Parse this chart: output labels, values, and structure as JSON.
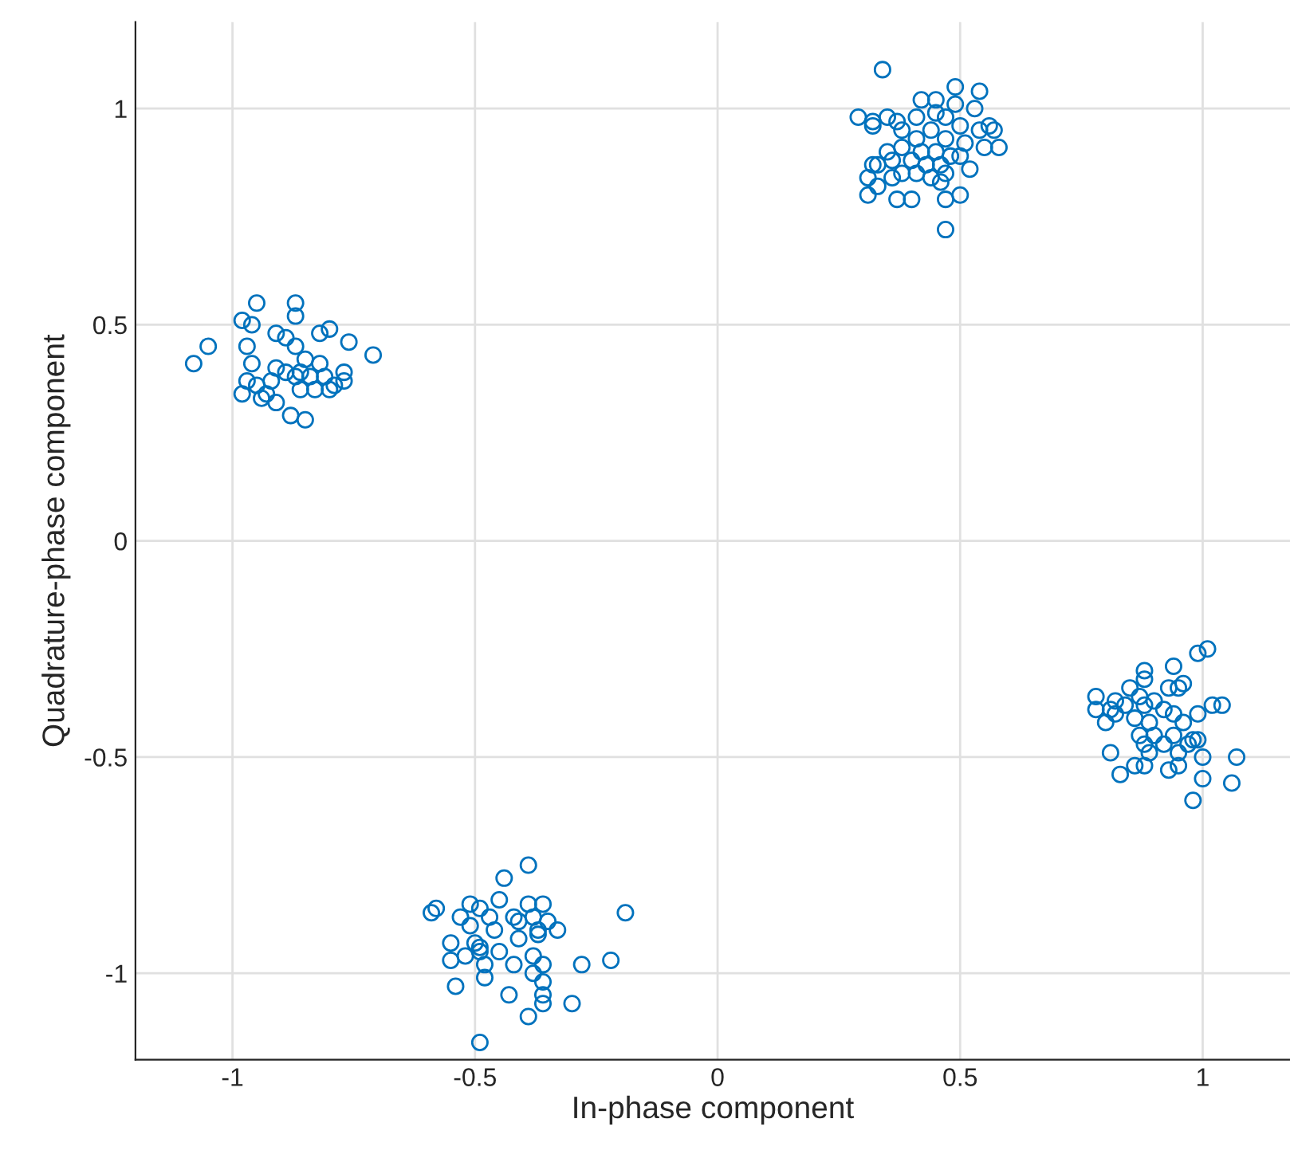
{
  "chart_data": {
    "type": "scatter",
    "xlabel": "In-phase component",
    "ylabel": "Quadrature-phase component",
    "xlim": [
      -1.2,
      1.18
    ],
    "ylim": [
      -1.2,
      1.2
    ],
    "xticks": [
      -1,
      -0.5,
      0,
      0.5,
      1
    ],
    "yticks": [
      -1,
      -0.5,
      0,
      0.5,
      1
    ],
    "grid": true,
    "marker": "circle",
    "series": [
      {
        "color": "#0072bd",
        "x": [
          -1.08,
          -1.05,
          -0.95,
          -0.87,
          -0.71,
          -0.76,
          -0.8,
          -0.82,
          -0.98,
          -0.96,
          -0.87,
          -0.91,
          -0.89,
          -0.87,
          -0.97,
          -0.96,
          -0.97,
          -0.95,
          -0.98,
          -0.94,
          -0.91,
          -0.88,
          -0.85,
          -0.91,
          -0.89,
          -0.87,
          -0.86,
          -0.84,
          -0.82,
          -0.81,
          -0.79,
          -0.77,
          -0.77,
          -0.83,
          -0.86,
          -0.92,
          -0.85,
          -0.8,
          -0.93,
          0.34,
          0.49,
          0.54,
          0.42,
          0.45,
          0.49,
          0.53,
          0.29,
          0.32,
          0.35,
          0.41,
          0.45,
          0.47,
          0.32,
          0.37,
          0.5,
          0.54,
          0.56,
          0.38,
          0.41,
          0.44,
          0.47,
          0.51,
          0.55,
          0.35,
          0.38,
          0.42,
          0.45,
          0.48,
          0.36,
          0.4,
          0.43,
          0.46,
          0.5,
          0.32,
          0.33,
          0.38,
          0.41,
          0.44,
          0.47,
          0.52,
          0.31,
          0.33,
          0.36,
          0.46,
          0.31,
          0.37,
          0.4,
          0.47,
          0.5,
          0.47,
          0.58,
          0.57,
          -0.39,
          -0.44,
          -0.59,
          -0.58,
          -0.51,
          -0.45,
          -0.39,
          -0.36,
          -0.53,
          -0.49,
          -0.47,
          -0.42,
          -0.38,
          -0.35,
          -0.19,
          -0.51,
          -0.46,
          -0.41,
          -0.37,
          -0.33,
          -0.55,
          -0.5,
          -0.49,
          -0.41,
          -0.37,
          -0.55,
          -0.52,
          -0.49,
          -0.45,
          -0.38,
          -0.36,
          -0.42,
          -0.48,
          -0.22,
          -0.28,
          -0.48,
          -0.38,
          -0.36,
          -0.54,
          -0.43,
          -0.36,
          -0.36,
          -0.3,
          -0.39,
          -0.49,
          1.01,
          0.99,
          0.88,
          0.94,
          0.88,
          0.96,
          0.78,
          0.82,
          0.85,
          0.87,
          0.9,
          0.93,
          0.95,
          0.78,
          0.81,
          0.84,
          0.88,
          0.92,
          1.02,
          1.04,
          0.99,
          0.82,
          0.8,
          0.86,
          0.89,
          0.94,
          0.96,
          0.87,
          0.9,
          0.94,
          0.98,
          0.88,
          0.92,
          0.97,
          0.99,
          0.89,
          0.95,
          0.81,
          1.0,
          1.07,
          0.86,
          0.88,
          0.93,
          0.95,
          0.83,
          1.0,
          1.06,
          0.98
        ],
        "values": [
          0.41,
          0.45,
          0.55,
          0.55,
          0.43,
          0.46,
          0.49,
          0.48,
          0.51,
          0.5,
          0.52,
          0.48,
          0.47,
          0.45,
          0.45,
          0.41,
          0.37,
          0.36,
          0.34,
          0.33,
          0.32,
          0.29,
          0.28,
          0.4,
          0.39,
          0.38,
          0.39,
          0.38,
          0.41,
          0.38,
          0.36,
          0.39,
          0.37,
          0.35,
          0.35,
          0.37,
          0.42,
          0.35,
          0.34,
          1.09,
          1.05,
          1.04,
          1.02,
          1.02,
          1.01,
          1.0,
          0.98,
          0.97,
          0.98,
          0.98,
          0.99,
          0.98,
          0.96,
          0.97,
          0.96,
          0.95,
          0.96,
          0.95,
          0.93,
          0.95,
          0.93,
          0.92,
          0.91,
          0.9,
          0.91,
          0.9,
          0.9,
          0.89,
          0.88,
          0.88,
          0.87,
          0.87,
          0.89,
          0.87,
          0.87,
          0.85,
          0.85,
          0.84,
          0.85,
          0.86,
          0.84,
          0.82,
          0.84,
          0.83,
          0.8,
          0.79,
          0.79,
          0.79,
          0.8,
          0.72,
          0.91,
          0.95,
          -0.75,
          -0.78,
          -0.86,
          -0.85,
          -0.84,
          -0.83,
          -0.84,
          -0.84,
          -0.87,
          -0.85,
          -0.87,
          -0.87,
          -0.87,
          -0.88,
          -0.86,
          -0.89,
          -0.9,
          -0.88,
          -0.9,
          -0.9,
          -0.93,
          -0.93,
          -0.94,
          -0.92,
          -0.91,
          -0.97,
          -0.96,
          -0.95,
          -0.95,
          -0.96,
          -0.98,
          -0.98,
          -0.98,
          -0.97,
          -0.98,
          -1.01,
          -1.0,
          -1.02,
          -1.03,
          -1.05,
          -1.05,
          -1.07,
          -1.07,
          -1.1,
          -1.16,
          -0.25,
          -0.26,
          -0.3,
          -0.29,
          -0.32,
          -0.33,
          -0.36,
          -0.37,
          -0.34,
          -0.36,
          -0.37,
          -0.34,
          -0.34,
          -0.39,
          -0.39,
          -0.38,
          -0.38,
          -0.39,
          -0.38,
          -0.38,
          -0.4,
          -0.4,
          -0.42,
          -0.41,
          -0.42,
          -0.4,
          -0.42,
          -0.45,
          -0.45,
          -0.45,
          -0.46,
          -0.47,
          -0.47,
          -0.47,
          -0.46,
          -0.49,
          -0.49,
          -0.49,
          -0.5,
          -0.5,
          -0.52,
          -0.52,
          -0.53,
          -0.52,
          -0.54,
          -0.55,
          -0.56,
          -0.6
        ]
      }
    ]
  }
}
